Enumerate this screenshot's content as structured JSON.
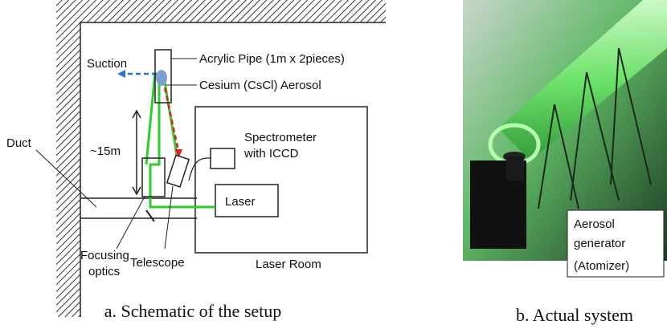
{
  "schematic": {
    "labels": {
      "suction": "Suction",
      "acrylic_pipe": "Acrylic Pipe (1m x 2pieces)",
      "aerosol": "Cesium (CsCl)  Aerosol",
      "distance": "~15m",
      "spectrometer": [
        "Spectrometer",
        "with ICCD"
      ],
      "duct": "Duct",
      "laser": "Laser",
      "focusing_optics": [
        "Focusing",
        "optics"
      ],
      "telescope": "Telescope",
      "laser_room": "Laser Room"
    },
    "caption": "a. Schematic of the setup"
  },
  "photo": {
    "label": [
      "Aerosol",
      "generator",
      "(Atomizer)"
    ],
    "caption": "b. Actual system"
  }
}
